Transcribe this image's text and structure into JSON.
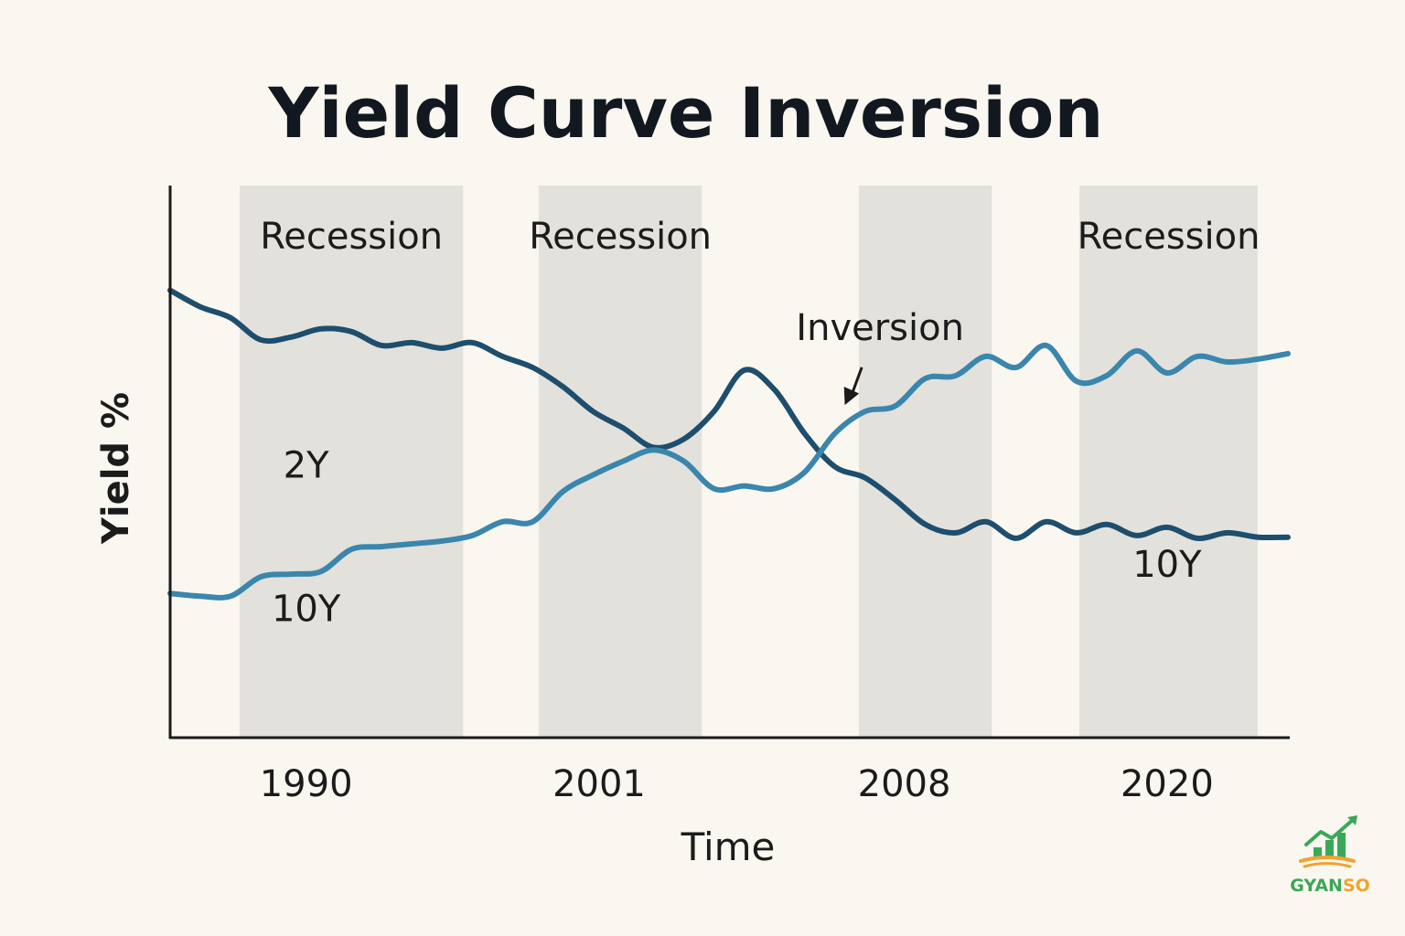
{
  "chart_data": {
    "type": "line",
    "title": "Yield Curve Inversion",
    "xlabel": "Time",
    "ylabel": "Yield %",
    "x_ticks": [
      "1990",
      "2001",
      "2008",
      "2020"
    ],
    "x": [
      1986,
      1987,
      1988,
      1989,
      1990,
      1991,
      1992,
      1993,
      1994,
      1995,
      1996,
      1997,
      1998,
      1999,
      2000,
      2001,
      2002,
      2003,
      2004,
      2005,
      2006,
      2007,
      2008,
      2009,
      2010,
      2011,
      2012,
      2013,
      2014,
      2015,
      2016,
      2017,
      2018,
      2019,
      2020,
      2021,
      2022,
      2023
    ],
    "xlim": [
      1986,
      2023
    ],
    "ylim": [
      0,
      10
    ],
    "grid": false,
    "series": [
      {
        "name": "2Y",
        "color": "#1d4e6e",
        "values": [
          8.1,
          7.8,
          7.6,
          7.2,
          7.25,
          7.4,
          7.35,
          7.1,
          7.15,
          7.05,
          7.15,
          6.9,
          6.7,
          6.35,
          5.9,
          5.6,
          5.25,
          5.4,
          5.9,
          6.65,
          6.3,
          5.5,
          4.9,
          4.7,
          4.3,
          3.85,
          3.7,
          3.9,
          3.6,
          3.9,
          3.7,
          3.85,
          3.65,
          3.8,
          3.6,
          3.7,
          3.62,
          3.62
        ]
      },
      {
        "name": "10Y",
        "color": "#3a86ad",
        "values": [
          2.6,
          2.55,
          2.55,
          2.9,
          2.95,
          3.0,
          3.4,
          3.45,
          3.5,
          3.55,
          3.65,
          3.9,
          3.9,
          4.45,
          4.75,
          5.0,
          5.2,
          5.0,
          4.5,
          4.55,
          4.5,
          4.8,
          5.5,
          5.9,
          6.0,
          6.5,
          6.55,
          6.9,
          6.7,
          7.1,
          6.45,
          6.55,
          7.0,
          6.6,
          6.9,
          6.8,
          6.85,
          6.95
        ]
      }
    ],
    "series_labels": [
      {
        "text": "2Y",
        "x": 1990.5,
        "y": 4.7
      },
      {
        "text": "10Y",
        "x": 1990.5,
        "y": 2.1
      },
      {
        "text": "10Y",
        "x": 2019.0,
        "y": 2.9
      }
    ],
    "shaded_regions": [
      {
        "label": "Recession",
        "x_start": 1988.3,
        "x_end": 1995.7
      },
      {
        "label": "Recession",
        "x_start": 1998.2,
        "x_end": 2003.6
      },
      {
        "label": "",
        "x_start": 2008.8,
        "x_end": 2013.2
      },
      {
        "label": "Recession",
        "x_start": 2016.1,
        "x_end": 2022.0
      }
    ],
    "annotations": [
      {
        "text": "Inversion",
        "x": 2009.5,
        "y": 7.2,
        "arrow_to_x": 2010.3,
        "arrow_to_y": 6.1
      }
    ]
  },
  "logo": {
    "text": "GYANSO",
    "colors": {
      "green": "#3aa857",
      "orange": "#f0a330"
    }
  }
}
